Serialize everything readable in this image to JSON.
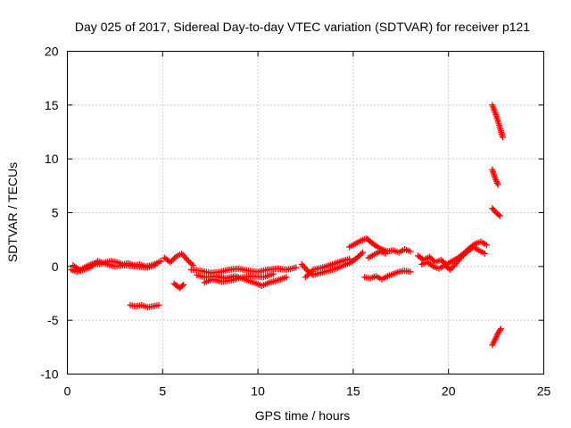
{
  "chart_data": {
    "type": "scatter",
    "title": "Day 025 of 2017, Sidereal Day-to-day VTEC variation (SDTVAR) for receiver p121",
    "xlabel": "GPS time / hours",
    "ylabel": "SDTVAR / TECUs",
    "xlim": [
      0,
      25
    ],
    "ylim": [
      -10,
      20
    ],
    "xticks": [
      0,
      5,
      10,
      15,
      20,
      25
    ],
    "xtick_labels": [
      "0",
      "5",
      "10",
      "15",
      "20",
      "25"
    ],
    "yticks": [
      -10,
      -5,
      0,
      5,
      10,
      15,
      20
    ],
    "ytick_labels": [
      "-10",
      "-5",
      "0",
      "5",
      "10",
      "15",
      "20"
    ],
    "grid": true,
    "marker": "+",
    "color": "#ff0000",
    "series": [
      {
        "name": "SDTVAR",
        "segments": [
          [
            [
              0.2,
              -0.3
            ],
            [
              0.5,
              -0.5
            ],
            [
              0.8,
              -0.2
            ],
            [
              1.1,
              0.1
            ],
            [
              1.4,
              0.3
            ],
            [
              1.7,
              0.2
            ],
            [
              2.0,
              0.4
            ],
            [
              2.3,
              0.5
            ],
            [
              2.6,
              0.4
            ],
            [
              2.9,
              0.2
            ],
            [
              3.2,
              0.3
            ],
            [
              3.5,
              0.1
            ],
            [
              3.8,
              0.2
            ],
            [
              4.1,
              0.0
            ],
            [
              4.4,
              0.1
            ],
            [
              4.7,
              0.3
            ],
            [
              4.9,
              0.5
            ]
          ],
          [
            [
              0.3,
              0.1
            ],
            [
              0.7,
              -0.4
            ],
            [
              1.2,
              -0.1
            ],
            [
              1.6,
              0.5
            ],
            [
              2.1,
              0.2
            ],
            [
              2.5,
              0.0
            ],
            [
              3.0,
              0.1
            ],
            [
              3.6,
              0.0
            ],
            [
              4.2,
              -0.1
            ],
            [
              4.6,
              0.1
            ]
          ],
          [
            [
              3.3,
              -3.6
            ],
            [
              3.6,
              -3.7
            ],
            [
              3.9,
              -3.6
            ],
            [
              4.2,
              -3.8
            ],
            [
              4.5,
              -3.7
            ],
            [
              4.8,
              -3.6
            ]
          ],
          [
            [
              5.1,
              0.8
            ],
            [
              5.4,
              0.4
            ],
            [
              5.7,
              0.9
            ],
            [
              6.0,
              1.2
            ],
            [
              6.3,
              0.6
            ],
            [
              6.6,
              0.1
            ]
          ],
          [
            [
              5.6,
              -1.6
            ],
            [
              5.9,
              -2.0
            ],
            [
              6.1,
              -1.7
            ]
          ],
          [
            [
              6.5,
              -0.3
            ],
            [
              7.0,
              -0.4
            ],
            [
              7.5,
              -0.6
            ],
            [
              8.0,
              -0.5
            ],
            [
              8.5,
              -0.3
            ],
            [
              9.0,
              -0.2
            ],
            [
              9.5,
              -0.4
            ],
            [
              10.0,
              -0.5
            ],
            [
              10.5,
              -0.3
            ],
            [
              11.0,
              -0.2
            ],
            [
              11.5,
              -0.3
            ],
            [
              12.0,
              -0.1
            ]
          ],
          [
            [
              6.8,
              -0.8
            ],
            [
              7.2,
              -1.0
            ],
            [
              7.8,
              -0.9
            ],
            [
              8.3,
              -1.1
            ],
            [
              8.8,
              -0.9
            ],
            [
              9.3,
              -1.2
            ],
            [
              9.8,
              -1.5
            ],
            [
              10.2,
              -1.8
            ],
            [
              10.6,
              -1.5
            ],
            [
              11.0,
              -1.3
            ],
            [
              11.5,
              -1.0
            ]
          ],
          [
            [
              7.2,
              -1.5
            ],
            [
              7.6,
              -1.2
            ],
            [
              8.1,
              -1.4
            ],
            [
              8.6,
              -1.3
            ],
            [
              9.2,
              -1.0
            ],
            [
              9.7,
              -0.9
            ],
            [
              10.3,
              -1.0
            ],
            [
              10.8,
              -0.7
            ]
          ],
          [
            [
              12.3,
              0.2
            ],
            [
              12.6,
              -0.4
            ],
            [
              12.9,
              -0.8
            ],
            [
              13.3,
              -0.6
            ],
            [
              13.7,
              -0.4
            ],
            [
              14.1,
              -0.2
            ],
            [
              14.5,
              0.1
            ],
            [
              14.9,
              0.4
            ],
            [
              15.2,
              0.8
            ],
            [
              15.5,
              1.3
            ]
          ],
          [
            [
              12.5,
              -1.0
            ],
            [
              12.9,
              -0.3
            ],
            [
              13.4,
              -0.1
            ],
            [
              13.9,
              0.2
            ],
            [
              14.4,
              0.5
            ],
            [
              14.8,
              0.7
            ]
          ],
          [
            [
              14.8,
              1.8
            ],
            [
              15.1,
              2.1
            ],
            [
              15.4,
              2.4
            ],
            [
              15.7,
              2.6
            ],
            [
              15.9,
              2.3
            ],
            [
              16.2,
              1.9
            ],
            [
              16.5,
              1.6
            ],
            [
              16.8,
              1.4
            ],
            [
              17.1,
              1.5
            ],
            [
              17.4,
              1.3
            ],
            [
              17.7,
              1.6
            ],
            [
              18.0,
              1.4
            ]
          ],
          [
            [
              15.6,
              -1.0
            ],
            [
              15.9,
              -1.1
            ],
            [
              16.2,
              -0.9
            ],
            [
              16.5,
              -1.2
            ],
            [
              16.8,
              -0.9
            ],
            [
              17.1,
              -0.7
            ],
            [
              17.4,
              -0.5
            ],
            [
              17.7,
              -0.4
            ],
            [
              18.0,
              -0.5
            ]
          ],
          [
            [
              15.8,
              0.8
            ],
            [
              16.1,
              1.1
            ],
            [
              16.4,
              1.4
            ],
            [
              16.7,
              1.2
            ]
          ],
          [
            [
              18.4,
              1.0
            ],
            [
              18.7,
              0.6
            ],
            [
              19.0,
              0.9
            ],
            [
              19.3,
              0.4
            ],
            [
              19.6,
              0.6
            ],
            [
              19.9,
              0.2
            ],
            [
              20.2,
              0.5
            ],
            [
              20.5,
              0.8
            ],
            [
              20.8,
              1.2
            ],
            [
              21.1,
              1.7
            ],
            [
              21.4,
              2.1
            ],
            [
              21.7,
              2.3
            ],
            [
              22.0,
              2.0
            ]
          ],
          [
            [
              18.6,
              0.2
            ],
            [
              18.9,
              0.4
            ],
            [
              19.2,
              0.0
            ],
            [
              19.5,
              -0.2
            ],
            [
              19.8,
              0.1
            ],
            [
              20.1,
              -0.3
            ],
            [
              20.4,
              0.3
            ],
            [
              20.7,
              0.9
            ],
            [
              21.0,
              1.4
            ],
            [
              21.3,
              1.8
            ],
            [
              21.6,
              1.5
            ],
            [
              21.9,
              1.2
            ]
          ],
          [
            [
              22.3,
              15.0
            ],
            [
              22.45,
              14.3
            ],
            [
              22.6,
              13.5
            ],
            [
              22.75,
              12.6
            ],
            [
              22.85,
              12.0
            ]
          ],
          [
            [
              22.3,
              9.0
            ],
            [
              22.45,
              8.2
            ],
            [
              22.6,
              7.6
            ]
          ],
          [
            [
              22.3,
              5.4
            ],
            [
              22.5,
              5.0
            ],
            [
              22.7,
              4.7
            ]
          ],
          [
            [
              22.3,
              -7.3
            ],
            [
              22.45,
              -6.8
            ],
            [
              22.6,
              -6.2
            ],
            [
              22.75,
              -5.8
            ]
          ]
        ]
      }
    ]
  }
}
